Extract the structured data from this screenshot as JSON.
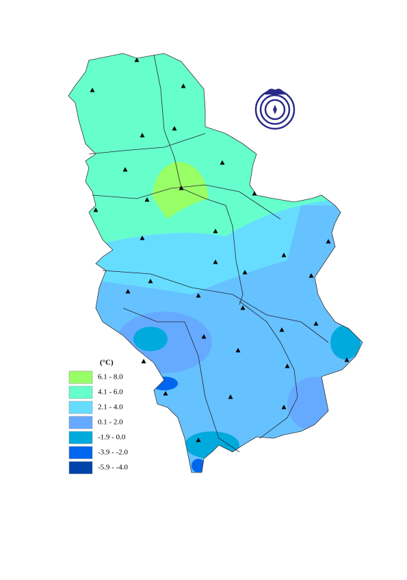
{
  "legend": {
    "title": "(°C)",
    "items": [
      {
        "label": "6.1 - 8.0",
        "color": "#99ff66"
      },
      {
        "label": "4.1 - 6.0",
        "color": "#66ffcc"
      },
      {
        "label": "2.1 - 4.0",
        "color": "#66ddff"
      },
      {
        "label": "0.1 - 2.0",
        "color": "#66aaff"
      },
      {
        "label": "-1.9 - 0.0",
        "color": "#00aadd"
      },
      {
        "label": "-3.9 - -2.0",
        "color": "#0066ee"
      },
      {
        "label": "-5.9 - -4.0",
        "color": "#0044aa"
      }
    ]
  }
}
